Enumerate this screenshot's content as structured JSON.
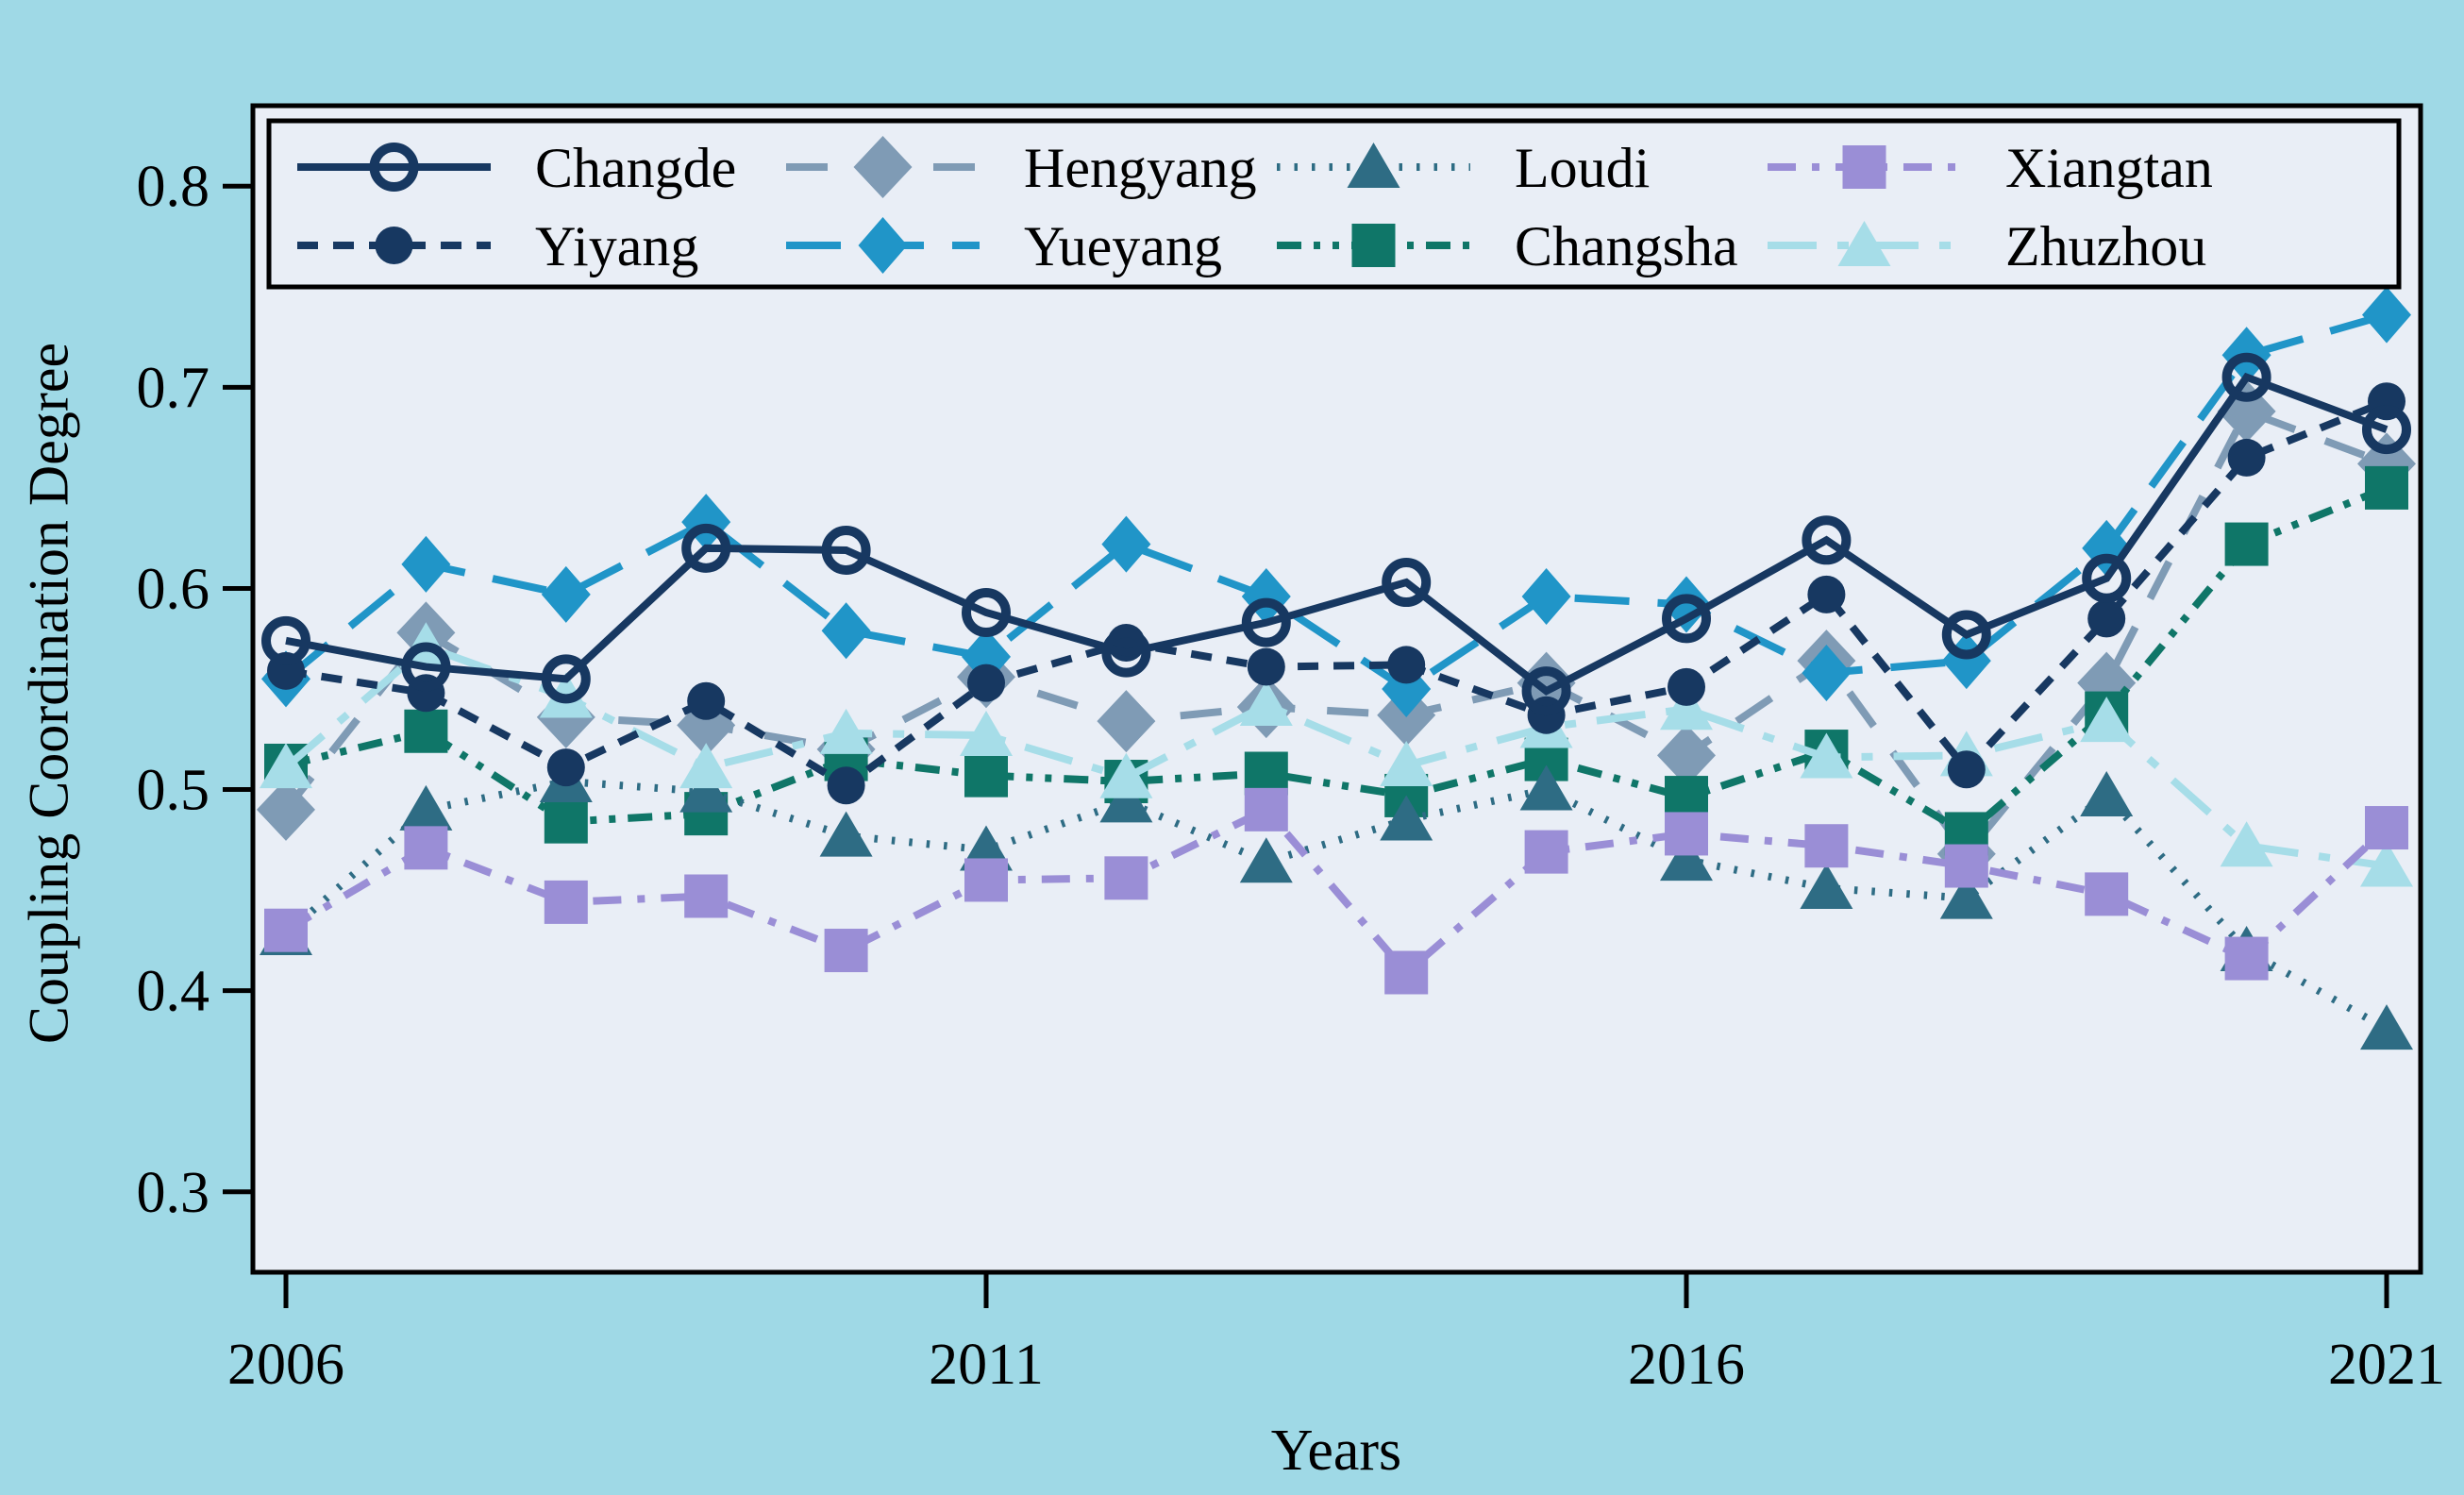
{
  "chart_data": {
    "type": "line",
    "title": "",
    "xlabel": "Years",
    "ylabel": "Coupling Coordination Degree",
    "x": [
      2006,
      2007,
      2008,
      2009,
      2010,
      2011,
      2012,
      2013,
      2014,
      2015,
      2016,
      2017,
      2018,
      2019,
      2020,
      2021
    ],
    "xtick_labels": [
      "2006",
      "2011",
      "2016",
      "2021"
    ],
    "xtick_years": [
      2006,
      2011,
      2016,
      2021
    ],
    "ytick_labels": [
      "0.3",
      "0.4",
      "0.5",
      "0.6",
      "0.7",
      "0.8"
    ],
    "yticks": [
      0.3,
      0.4,
      0.5,
      0.6,
      0.7,
      0.8
    ],
    "ylim": [
      0.26,
      0.84
    ],
    "grid": false,
    "legend_position": "top-inside-box",
    "legend_rows": [
      [
        "Changde",
        "Hengyang",
        "Loudi",
        "Xiangtan"
      ],
      [
        "Yiyang",
        "Yueyang",
        "Changsha",
        "Zhuzhou"
      ]
    ],
    "series": [
      {
        "name": "Changde",
        "color": "#173861",
        "dash": "solid",
        "marker": "circle-open",
        "values": [
          0.574,
          0.561,
          0.555,
          0.62,
          0.619,
          0.588,
          0.568,
          0.583,
          0.603,
          0.549,
          0.585,
          0.624,
          0.577,
          0.605,
          0.705,
          0.679
        ]
      },
      {
        "name": "Hengyang",
        "color": "#7f9bb5",
        "dash": "dash",
        "marker": "diamond-large",
        "values": [
          0.49,
          0.578,
          0.536,
          0.532,
          0.52,
          0.556,
          0.534,
          0.541,
          0.537,
          0.553,
          0.517,
          0.564,
          0.468,
          0.553,
          0.688,
          0.662
        ]
      },
      {
        "name": "Loudi",
        "color": "#2e6c84",
        "dash": "dot",
        "marker": "triangle",
        "values": [
          0.428,
          0.49,
          0.504,
          0.499,
          0.477,
          0.47,
          0.494,
          0.464,
          0.485,
          0.5,
          0.465,
          0.451,
          0.446,
          0.497,
          0.42,
          0.381
        ]
      },
      {
        "name": "Xiangtan",
        "color": "#9a8ed6",
        "dash": "dashdot",
        "marker": "square",
        "values": [
          0.43,
          0.471,
          0.444,
          0.447,
          0.42,
          0.455,
          0.456,
          0.49,
          0.409,
          0.469,
          0.478,
          0.472,
          0.462,
          0.448,
          0.416,
          0.481
        ]
      },
      {
        "name": "Yiyang",
        "color": "#173861",
        "dash": "densedash",
        "marker": "circle",
        "values": [
          0.559,
          0.548,
          0.511,
          0.544,
          0.502,
          0.553,
          0.573,
          0.561,
          0.562,
          0.537,
          0.551,
          0.597,
          0.51,
          0.585,
          0.665,
          0.693
        ]
      },
      {
        "name": "Yueyang",
        "color": "#2095c8",
        "dash": "longdash",
        "marker": "diamond",
        "values": [
          0.555,
          0.612,
          0.597,
          0.633,
          0.579,
          0.566,
          0.622,
          0.596,
          0.55,
          0.596,
          0.592,
          0.558,
          0.564,
          0.62,
          0.716,
          0.736
        ]
      },
      {
        "name": "Changsha",
        "color": "#0f7668",
        "dash": "dashdotdot",
        "marker": "square",
        "values": [
          0.512,
          0.529,
          0.484,
          0.488,
          0.515,
          0.507,
          0.504,
          0.508,
          0.497,
          0.515,
          0.496,
          0.519,
          0.478,
          0.538,
          0.622,
          0.65
        ]
      },
      {
        "name": "Zhuzhou",
        "color": "#a6dde8",
        "dash": "longdashdot",
        "marker": "triangle",
        "values": [
          0.511,
          0.571,
          0.546,
          0.511,
          0.528,
          0.527,
          0.506,
          0.542,
          0.512,
          0.531,
          0.54,
          0.516,
          0.517,
          0.534,
          0.472,
          0.462
        ]
      }
    ],
    "draw_order": [
      "Hengyang",
      "Changsha",
      "Loudi",
      "Zhuzhou",
      "Xiangtan",
      "Yueyang",
      "Yiyang",
      "Changde"
    ],
    "colors": {
      "outer_background": "#9fd9e6",
      "plot_background": "#e9eef6",
      "frame": "#000000",
      "text": "#000000"
    }
  }
}
